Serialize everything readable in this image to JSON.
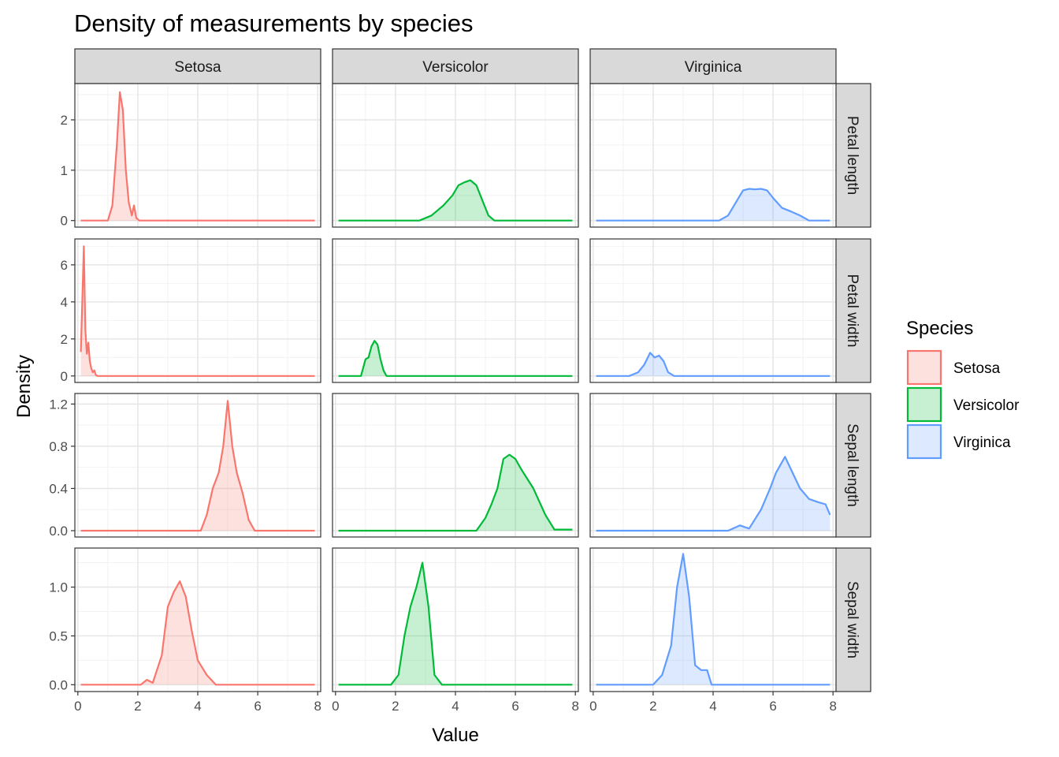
{
  "chart_data": {
    "type": "area",
    "title": "Density of measurements by species",
    "xlabel": "Value",
    "ylabel": "Density",
    "xlim": [
      -0.1,
      8.1
    ],
    "x_ticks": [
      "0",
      "2",
      "4",
      "6",
      "8"
    ],
    "grid": true,
    "legend": {
      "title": "Species",
      "placement": "right",
      "entries": [
        {
          "name": "Setosa",
          "color": "#F8766D"
        },
        {
          "name": "Versicolor",
          "color": "#00BA38"
        },
        {
          "name": "Virginica",
          "color": "#619CFF"
        }
      ]
    },
    "columns": [
      "Setosa",
      "Versicolor",
      "Virginica"
    ],
    "rows": [
      {
        "label": "Petal length",
        "ylim": [
          -0.13,
          2.72
        ],
        "y_ticks": [
          0,
          1,
          2
        ],
        "y_tick_labels": [
          "0",
          "1",
          "2"
        ]
      },
      {
        "label": "Petal width",
        "ylim": [
          -0.35,
          7.4
        ],
        "y_ticks": [
          0,
          2,
          4,
          6
        ],
        "y_tick_labels": [
          "0",
          "2",
          "4",
          "6"
        ]
      },
      {
        "label": "Sepal length",
        "ylim": [
          -0.06,
          1.3
        ],
        "y_ticks": [
          0,
          0.4,
          0.8,
          1.2
        ],
        "y_tick_labels": [
          "0.0",
          "0.4",
          "0.8",
          "1.2"
        ]
      },
      {
        "label": "Sepal width",
        "ylim": [
          -0.07,
          1.4
        ],
        "y_ticks": [
          0,
          0.5,
          1.0
        ],
        "y_tick_labels": [
          "0.0",
          "0.5",
          "1.0"
        ]
      }
    ],
    "series": [
      {
        "name": "Setosa",
        "panel": "Petal length",
        "x": [
          0.1,
          1.0,
          1.15,
          1.3,
          1.4,
          1.5,
          1.6,
          1.7,
          1.8,
          1.87,
          1.95,
          2.05,
          7.9
        ],
        "y": [
          0,
          0,
          0.3,
          1.5,
          2.55,
          2.2,
          1.0,
          0.35,
          0.1,
          0.3,
          0.05,
          0,
          0
        ]
      },
      {
        "name": "Versicolor",
        "panel": "Petal length",
        "x": [
          0.1,
          2.8,
          3.2,
          3.6,
          3.9,
          4.1,
          4.3,
          4.5,
          4.7,
          4.9,
          5.1,
          5.3,
          7.9
        ],
        "y": [
          0,
          0,
          0.1,
          0.3,
          0.5,
          0.7,
          0.76,
          0.8,
          0.7,
          0.4,
          0.1,
          0,
          0
        ]
      },
      {
        "name": "Virginica",
        "panel": "Petal length",
        "x": [
          0.1,
          4.2,
          4.5,
          4.8,
          5.0,
          5.2,
          5.4,
          5.6,
          5.8,
          6.0,
          6.3,
          6.6,
          6.9,
          7.2,
          7.9
        ],
        "y": [
          0,
          0,
          0.1,
          0.4,
          0.6,
          0.63,
          0.62,
          0.63,
          0.6,
          0.45,
          0.25,
          0.18,
          0.1,
          0,
          0
        ]
      },
      {
        "name": "Setosa",
        "panel": "Petal width",
        "x": [
          0.1,
          0.2,
          0.25,
          0.3,
          0.35,
          0.4,
          0.45,
          0.5,
          0.55,
          0.6,
          0.65,
          7.9
        ],
        "y": [
          1.3,
          7.0,
          2.5,
          1.2,
          1.8,
          0.8,
          0.4,
          0.2,
          0.3,
          0.05,
          0,
          0
        ]
      },
      {
        "name": "Versicolor",
        "panel": "Petal width",
        "x": [
          0.1,
          0.85,
          1.0,
          1.1,
          1.2,
          1.3,
          1.4,
          1.5,
          1.6,
          1.7,
          7.9
        ],
        "y": [
          0,
          0,
          0.9,
          1.0,
          1.6,
          1.9,
          1.7,
          0.9,
          0.3,
          0,
          0
        ]
      },
      {
        "name": "Virginica",
        "panel": "Petal width",
        "x": [
          0.1,
          1.2,
          1.5,
          1.7,
          1.9,
          2.05,
          2.2,
          2.35,
          2.5,
          2.7,
          7.9
        ],
        "y": [
          0,
          0,
          0.2,
          0.6,
          1.25,
          1.0,
          1.1,
          0.8,
          0.2,
          0,
          0
        ]
      },
      {
        "name": "Setosa",
        "panel": "Sepal length",
        "x": [
          0.1,
          4.1,
          4.3,
          4.5,
          4.7,
          4.85,
          5.0,
          5.15,
          5.3,
          5.5,
          5.7,
          5.9,
          7.9
        ],
        "y": [
          0,
          0,
          0.15,
          0.4,
          0.55,
          0.8,
          1.23,
          0.8,
          0.55,
          0.35,
          0.1,
          0,
          0
        ]
      },
      {
        "name": "Versicolor",
        "panel": "Sepal length",
        "x": [
          0.1,
          4.7,
          5.0,
          5.2,
          5.4,
          5.6,
          5.8,
          6.0,
          6.2,
          6.6,
          7.0,
          7.3,
          7.9
        ],
        "y": [
          0,
          0,
          0.12,
          0.25,
          0.4,
          0.68,
          0.72,
          0.68,
          0.58,
          0.4,
          0.15,
          0.01,
          0.01
        ]
      },
      {
        "name": "Virginica",
        "panel": "Sepal length",
        "x": [
          0.1,
          4.5,
          4.9,
          5.2,
          5.6,
          5.9,
          6.1,
          6.4,
          6.6,
          6.9,
          7.2,
          7.5,
          7.75,
          7.9
        ],
        "y": [
          0,
          0,
          0.05,
          0.02,
          0.2,
          0.4,
          0.55,
          0.7,
          0.58,
          0.4,
          0.3,
          0.27,
          0.25,
          0.15
        ]
      },
      {
        "name": "Setosa",
        "panel": "Sepal width",
        "x": [
          0.1,
          2.1,
          2.3,
          2.5,
          2.8,
          3.0,
          3.2,
          3.4,
          3.6,
          3.8,
          4.0,
          4.3,
          4.6,
          7.9
        ],
        "y": [
          0,
          0,
          0.05,
          0.02,
          0.3,
          0.8,
          0.95,
          1.06,
          0.9,
          0.55,
          0.25,
          0.1,
          0,
          0
        ]
      },
      {
        "name": "Versicolor",
        "panel": "Sepal width",
        "x": [
          0.1,
          1.85,
          2.1,
          2.3,
          2.5,
          2.7,
          2.9,
          3.1,
          3.3,
          3.55,
          7.9
        ],
        "y": [
          0,
          0,
          0.1,
          0.5,
          0.8,
          1.0,
          1.25,
          0.8,
          0.1,
          0,
          0
        ]
      },
      {
        "name": "Virginica",
        "panel": "Sepal width",
        "x": [
          0.1,
          2.0,
          2.3,
          2.6,
          2.8,
          3.0,
          3.2,
          3.4,
          3.6,
          3.8,
          3.95,
          7.9
        ],
        "y": [
          0,
          0,
          0.1,
          0.4,
          1.0,
          1.34,
          0.9,
          0.2,
          0.15,
          0.15,
          0,
          0
        ]
      }
    ]
  }
}
